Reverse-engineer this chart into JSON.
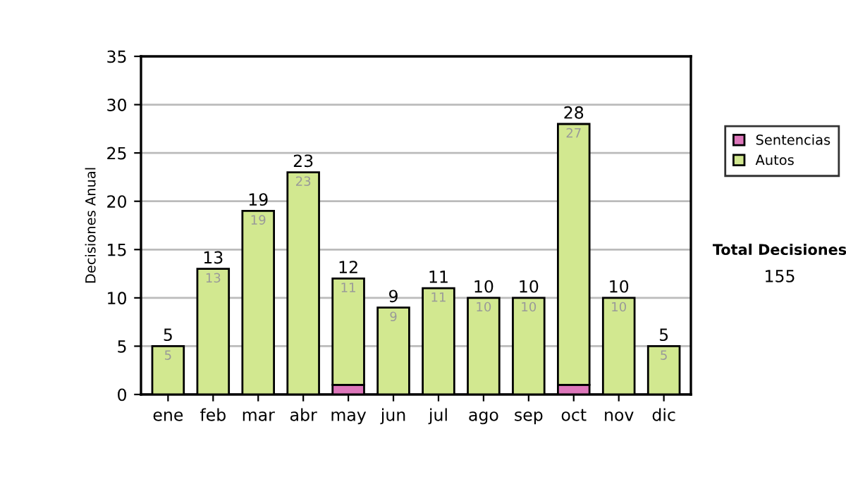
{
  "chart_data": {
    "type": "bar",
    "stacked": true,
    "ylabel": "Decisiones Anual",
    "categories": [
      "ene",
      "feb",
      "mar",
      "abr",
      "may",
      "jun",
      "jul",
      "ago",
      "sep",
      "oct",
      "nov",
      "dic"
    ],
    "series": [
      {
        "name": "Sentencias",
        "color": "#dd77bb",
        "values": [
          0,
          0,
          0,
          0,
          1,
          0,
          0,
          0,
          0,
          1,
          0,
          0
        ]
      },
      {
        "name": "Autos",
        "color": "#d2e890",
        "values": [
          5,
          13,
          19,
          23,
          11,
          9,
          11,
          10,
          10,
          27,
          10,
          5
        ],
        "value_labels": [
          "5",
          "13",
          "19",
          "23",
          "11",
          "9",
          "11",
          "10",
          "10",
          "27",
          "10",
          "5"
        ]
      }
    ],
    "totals": [
      "5",
      "13",
      "19",
      "23",
      "12",
      "9",
      "11",
      "10",
      "10",
      "28",
      "10",
      "5"
    ],
    "ylim": [
      0,
      35
    ],
    "yticks": [
      0,
      5,
      10,
      15,
      20,
      25,
      30,
      35
    ],
    "grid": "y",
    "legend": "right",
    "annotations": [
      "Total Decisiones",
      "155"
    ]
  }
}
